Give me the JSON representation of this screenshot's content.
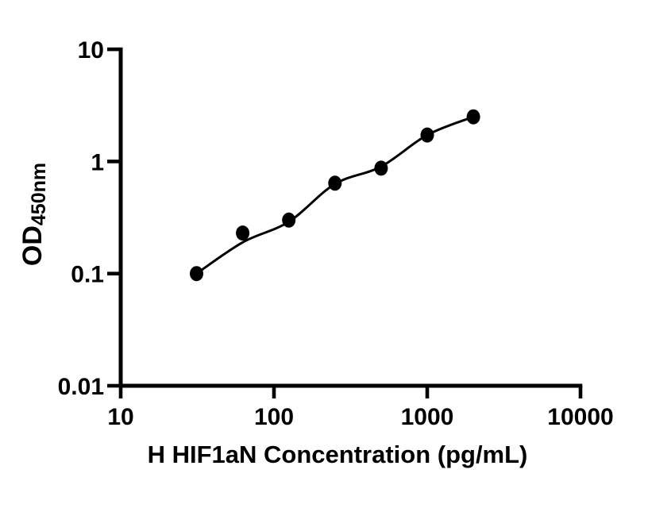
{
  "figure": {
    "background": "#ffffff",
    "description": "ELISA standard curve plot"
  },
  "chart_data": {
    "type": "scatter",
    "title": "",
    "xlabel": "H HIF1aN Concentration (pg/mL)",
    "ylabel_main": "OD",
    "ylabel_sub": "450nm",
    "x_scale": "log10",
    "y_scale": "log10",
    "xlim": [
      10,
      10000
    ],
    "ylim": [
      0.01,
      10
    ],
    "x_ticks": {
      "values": [
        10,
        100,
        1000,
        10000
      ],
      "labels": [
        "10",
        "100",
        "1000",
        "10000"
      ]
    },
    "y_ticks": {
      "values": [
        10,
        1,
        0.1,
        0.01
      ],
      "labels": [
        "10",
        "1",
        "0.1",
        "0.01"
      ]
    },
    "grid": false,
    "legend": false,
    "axis_color": "#000000",
    "text_color": "#000000",
    "background": "#ffffff",
    "series": [
      {
        "name": "standard-data-points",
        "type": "scatter",
        "marker": "filled-circle",
        "color": "#000000",
        "x": [
          31.25,
          62.5,
          125,
          250,
          500,
          1000,
          2000
        ],
        "y": [
          0.1,
          0.23,
          0.3,
          0.64,
          0.87,
          1.72,
          2.5
        ]
      },
      {
        "name": "fitted-standard-curve",
        "type": "line",
        "color": "#000000",
        "x": [
          31.25,
          62.5,
          125,
          250,
          500,
          1000,
          2000
        ],
        "y": [
          0.1,
          0.19,
          0.29,
          0.63,
          0.9,
          1.72,
          2.5
        ]
      }
    ]
  }
}
